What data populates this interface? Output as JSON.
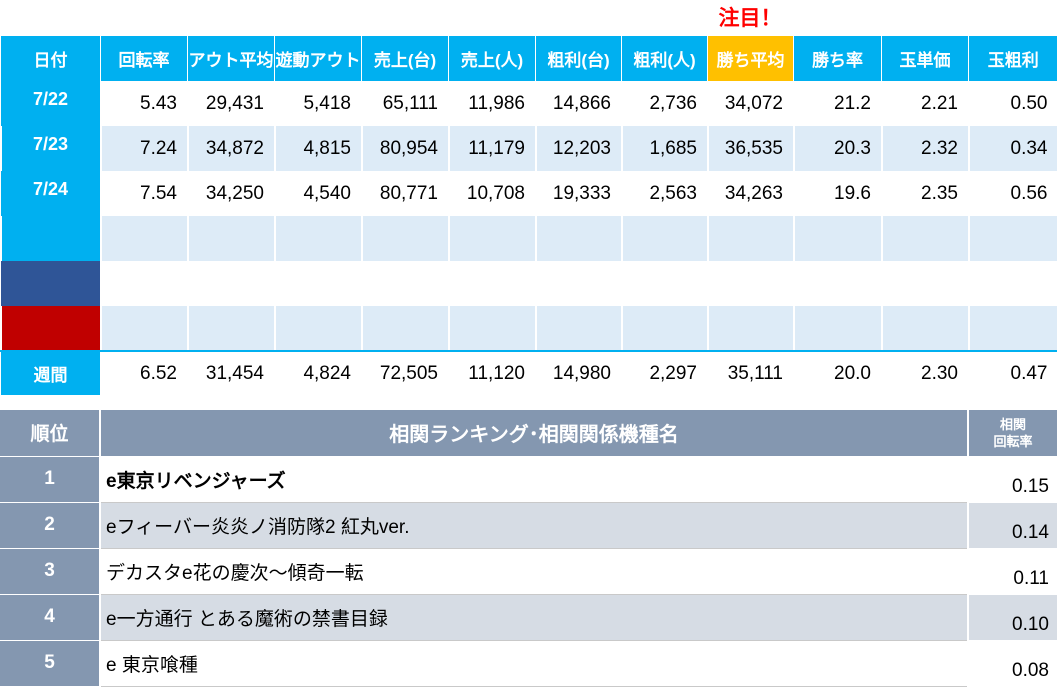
{
  "attention_label": "注目！",
  "headers": [
    "日付",
    "回転率",
    "アウト平均",
    "遊動アウト",
    "売上(台)",
    "売上(人)",
    "粗利(台)",
    "粗利(人)",
    "勝ち平均",
    "勝ち率",
    "玉単価",
    "玉粗利"
  ],
  "rows": [
    {
      "date": "7/22",
      "values": [
        "5.43",
        "29,431",
        "5,418",
        "65,111",
        "11,986",
        "14,866",
        "2,736",
        "34,072",
        "21.2",
        "2.21",
        "0.50"
      ]
    },
    {
      "date": "7/23",
      "values": [
        "7.24",
        "34,872",
        "4,815",
        "80,954",
        "11,179",
        "12,203",
        "1,685",
        "36,535",
        "20.3",
        "2.32",
        "0.34"
      ]
    },
    {
      "date": "7/24",
      "values": [
        "7.54",
        "34,250",
        "4,540",
        "80,771",
        "10,708",
        "19,333",
        "2,563",
        "34,263",
        "19.6",
        "2.35",
        "0.56"
      ]
    }
  ],
  "week": {
    "label": "週間",
    "values": [
      "6.52",
      "31,454",
      "4,824",
      "72,505",
      "11,120",
      "14,980",
      "2,297",
      "35,111",
      "20.0",
      "2.30",
      "0.47"
    ]
  },
  "colors": {
    "header": "#00b0f0",
    "highlight": "#ffc000",
    "blue_row": "#2f5597",
    "red_row": "#c00000",
    "stripe": "#ddebf7",
    "rank_header": "#8497b0",
    "rank_stripe": "#d6dce4"
  },
  "ranking": {
    "header_rank": "順位",
    "header_name": "相関ランキング･相関関係機種名",
    "header_corr_line1": "相関",
    "header_corr_line2": "回転率",
    "items": [
      {
        "rank": "1",
        "name": "e東京リベンジャーズ",
        "value": "0.15"
      },
      {
        "rank": "2",
        "name": "eフィーバー炎炎ノ消防隊2 紅丸ver.",
        "value": "0.14"
      },
      {
        "rank": "3",
        "name": "デカスタe花の慶次～傾奇一転",
        "value": "0.11"
      },
      {
        "rank": "4",
        "name": "e一方通行 とある魔術の禁書目録",
        "value": "0.10"
      },
      {
        "rank": "5",
        "name": "e 東京喰種",
        "value": "0.08"
      }
    ]
  }
}
